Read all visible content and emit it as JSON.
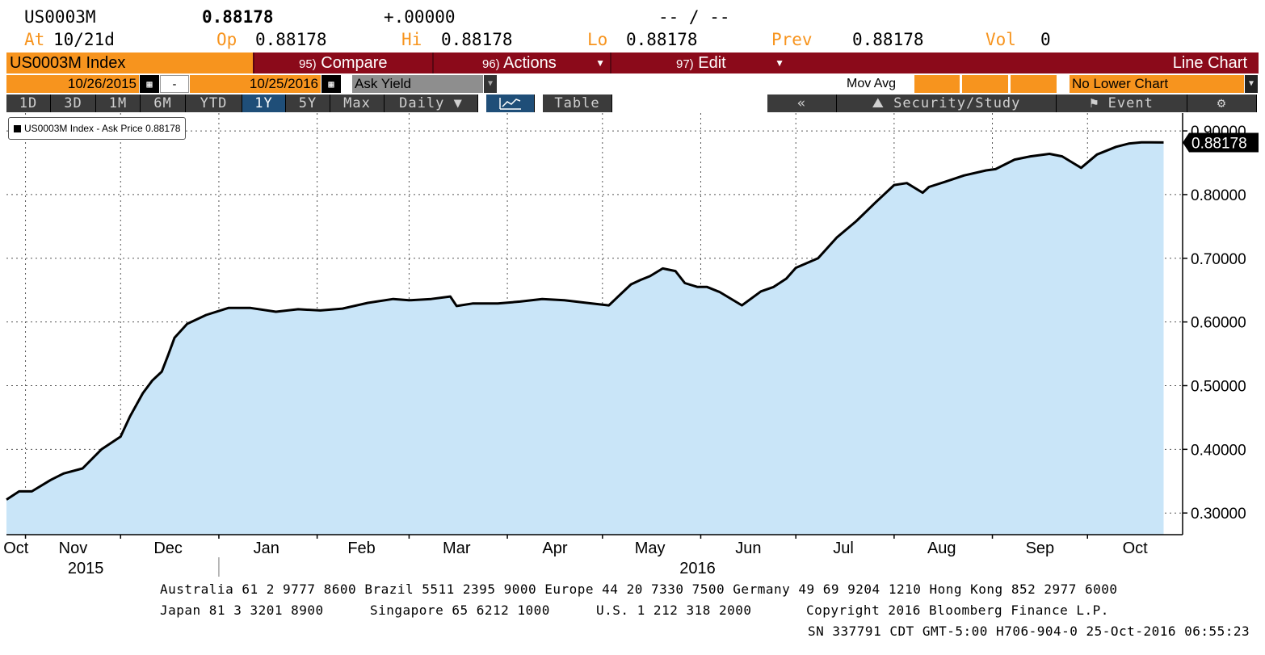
{
  "header": {
    "ticker": "US0003M",
    "last": "0.88178",
    "change": "+.00000",
    "time_sep": "-- / --",
    "at_label": "At",
    "at_value": "10/21d",
    "op_label": "Op",
    "op_value": "0.88178",
    "hi_label": "Hi",
    "hi_value": "0.88178",
    "lo_label": "Lo",
    "lo_value": "0.88178",
    "prev_label": "Prev",
    "prev_value": "0.88178",
    "vol_label": "Vol",
    "vol_value": "0"
  },
  "menubar": {
    "title": "US0003M Index",
    "compare_num": "95)",
    "compare": "Compare",
    "actions_num": "96)",
    "actions": "Actions",
    "edit_num": "97)",
    "edit": "Edit",
    "chart_type": "Line Chart"
  },
  "controls": {
    "start_date": "10/26/2015",
    "dash": "-",
    "end_date": "10/25/2016",
    "field": "Ask Yield",
    "mov_avg": "Mov Avg",
    "lower_chart": "No Lower Chart"
  },
  "tabs": [
    "1D",
    "3D",
    "1M",
    "6M",
    "YTD",
    "1Y",
    "5Y",
    "Max",
    "Daily ▼"
  ],
  "table_label": "Table",
  "right_tabs": {
    "back": "«",
    "security_study": "Security/Study",
    "event": "Event"
  },
  "colors": {
    "fill": "#c9e5f8",
    "line": "#000000",
    "accent_orange": "#f7941e",
    "menu_red": "#8b0a1a"
  },
  "chart_data": {
    "type": "area",
    "legend": "US0003M Index - Ask Price 0.88178",
    "last_value_label": "0.88178",
    "months": [
      "Oct",
      "Nov",
      "Dec",
      "Jan",
      "Feb",
      "Mar",
      "Apr",
      "May",
      "Jun",
      "Jul",
      "Aug",
      "Sep",
      "Oct"
    ],
    "years": [
      "2015",
      "2016"
    ],
    "yticks": [
      "0.30000",
      "0.40000",
      "0.50000",
      "0.60000",
      "0.70000",
      "0.80000",
      "0.90000"
    ],
    "ylim": [
      0.266,
      0.928
    ],
    "xlim": [
      "2015-10-26",
      "2016-10-31"
    ],
    "grid": true,
    "x": [
      "2015-10-26",
      "2015-10-30",
      "2015-11-03",
      "2015-11-09",
      "2015-11-13",
      "2015-11-19",
      "2015-11-25",
      "2015-12-01",
      "2015-12-04",
      "2015-12-08",
      "2015-12-11",
      "2015-12-14",
      "2015-12-16",
      "2015-12-18",
      "2015-12-22",
      "2015-12-28",
      "2016-01-04",
      "2016-01-11",
      "2016-01-19",
      "2016-01-26",
      "2016-02-02",
      "2016-02-09",
      "2016-02-17",
      "2016-02-25",
      "2016-03-01",
      "2016-03-08",
      "2016-03-14",
      "2016-03-16",
      "2016-03-21",
      "2016-03-29",
      "2016-04-05",
      "2016-04-12",
      "2016-04-19",
      "2016-04-26",
      "2016-05-03",
      "2016-05-10",
      "2016-05-13",
      "2016-05-16",
      "2016-05-20",
      "2016-05-24",
      "2016-05-27",
      "2016-05-31",
      "2016-06-03",
      "2016-06-07",
      "2016-06-14",
      "2016-06-20",
      "2016-06-24",
      "2016-06-28",
      "2016-07-01",
      "2016-07-08",
      "2016-07-14",
      "2016-07-20",
      "2016-07-26",
      "2016-08-01",
      "2016-08-05",
      "2016-08-10",
      "2016-08-12",
      "2016-08-17",
      "2016-08-23",
      "2016-08-30",
      "2016-09-02",
      "2016-09-08",
      "2016-09-13",
      "2016-09-19",
      "2016-09-23",
      "2016-09-27",
      "2016-09-29",
      "2016-10-04",
      "2016-10-10",
      "2016-10-14",
      "2016-10-18",
      "2016-10-21",
      "2016-10-25"
    ],
    "values": [
      0.321,
      0.334,
      0.334,
      0.352,
      0.362,
      0.37,
      0.4,
      0.42,
      0.452,
      0.488,
      0.508,
      0.522,
      0.548,
      0.575,
      0.597,
      0.611,
      0.622,
      0.622,
      0.616,
      0.62,
      0.618,
      0.621,
      0.63,
      0.636,
      0.634,
      0.636,
      0.64,
      0.625,
      0.629,
      0.629,
      0.632,
      0.636,
      0.634,
      0.63,
      0.626,
      0.659,
      0.666,
      0.672,
      0.684,
      0.68,
      0.661,
      0.655,
      0.655,
      0.647,
      0.626,
      0.648,
      0.655,
      0.668,
      0.685,
      0.7,
      0.733,
      0.758,
      0.787,
      0.815,
      0.818,
      0.803,
      0.812,
      0.82,
      0.83,
      0.838,
      0.84,
      0.855,
      0.86,
      0.864,
      0.86,
      0.848,
      0.842,
      0.863,
      0.875,
      0.88,
      0.882,
      0.882,
      0.88178
    ]
  },
  "footer": {
    "line1": "Australia 61 2 9777 8600 Brazil 5511 2395 9000 Europe 44 20 7330 7500 Germany 49 69 9204 1210 Hong Kong 852 2977 6000",
    "line2_a": "Japan 81 3 3201 8900",
    "line2_b": "Singapore 65 6212 1000",
    "line2_c": "U.S. 1 212 318 2000",
    "line2_d": "Copyright 2016 Bloomberg Finance L.P.",
    "line3": "SN 337791 CDT  GMT-5:00 H706-904-0 25-Oct-2016 06:55:23"
  }
}
